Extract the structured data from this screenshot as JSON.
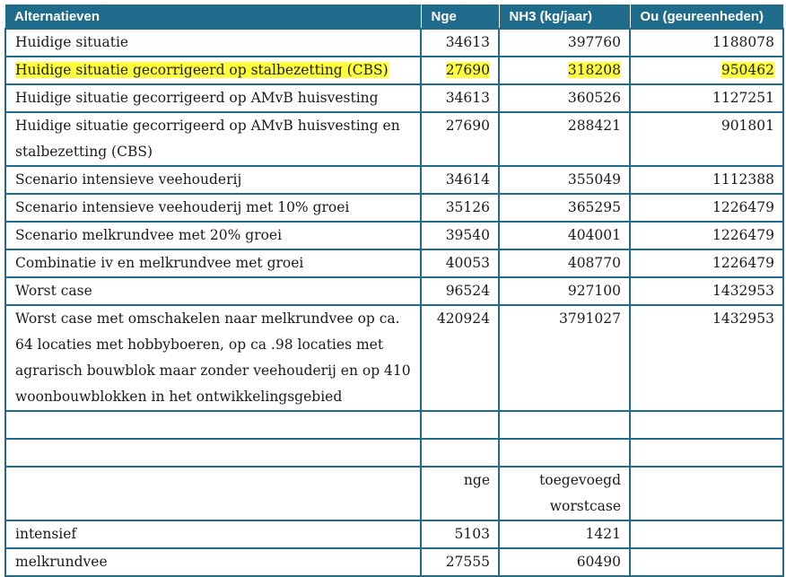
{
  "header": {
    "col1": "Alternatieven",
    "col2": "Nge",
    "col3": "NH3 (kg/jaar)",
    "col4": "Ou (geureenheden)"
  },
  "rows": [
    {
      "label": "Huidige situatie",
      "nge": "34613",
      "nh3": "397760",
      "ou": "1188078"
    },
    {
      "label": "Huidige situatie gecorrigeerd op stalbezetting (CBS)",
      "nge": "27690",
      "nh3": "318208",
      "ou": "950462"
    },
    {
      "label": "Huidige situatie gecorrigeerd op AMvB huisvesting",
      "nge": "34613",
      "nh3": "360526",
      "ou": "1127251"
    },
    {
      "label": "Huidige situatie gecorrigeerd op AMvB huisvesting en stalbezetting (CBS)",
      "nge": "27690",
      "nh3": "288421",
      "ou": "901801"
    },
    {
      "label": "Scenario intensieve veehouderij",
      "nge": "34614",
      "nh3": "355049",
      "ou": "1112388"
    },
    {
      "label": "Scenario intensieve veehouderij met 10% groei",
      "nge": "35126",
      "nh3": "365295",
      "ou": "1226479"
    },
    {
      "label": "Scenario melkrundvee met 20% groei",
      "nge": "39540",
      "nh3": "404001",
      "ou": "1226479"
    },
    {
      "label": "Combinatie iv en melkrundvee met groei",
      "nge": "40053",
      "nh3": "408770",
      "ou": "1226479"
    },
    {
      "label": "Worst case",
      "nge": "96524",
      "nh3": "927100",
      "ou": "1432953"
    },
    {
      "label": "Worst case met omschakelen naar melkrundvee op ca. 64 locaties met hobbyboeren, op ca .98 locaties met agrarisch bouwblok maar zonder veehouderij en op 410 woonbouwblokken in het ontwikkelingsgebied",
      "nge": "420924",
      "nh3": "3791027",
      "ou": "1432953"
    }
  ],
  "subheader": {
    "nge": "nge",
    "added": "toegevoegd worstcase"
  },
  "extra_rows": [
    {
      "label": "intensief",
      "nge": "5103",
      "added": "1421"
    },
    {
      "label": "melkrundvee",
      "nge": "27555",
      "added": "60490"
    }
  ],
  "colors": {
    "header_bg": "#1f6b8c",
    "highlight": "#ffff3a"
  }
}
